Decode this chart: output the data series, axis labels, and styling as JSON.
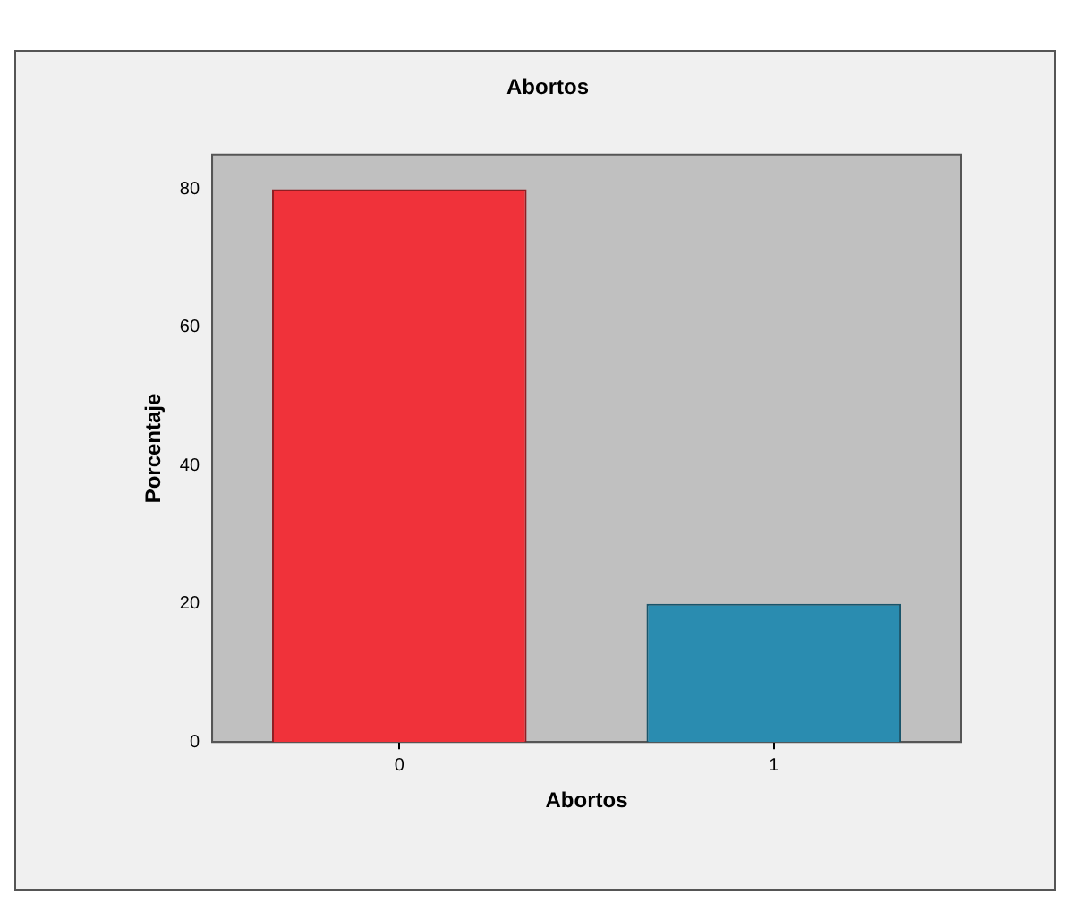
{
  "chart_data": {
    "type": "bar",
    "title": "Abortos",
    "xlabel": "Abortos",
    "ylabel": "Porcentaje",
    "categories": [
      "0",
      "1"
    ],
    "values": [
      80,
      20
    ],
    "colors": [
      "#f0323a",
      "#2a8cb0"
    ],
    "ylim": [
      0,
      85
    ],
    "yticks": [
      0,
      20,
      40,
      60,
      80
    ],
    "grid": false,
    "legend": false
  }
}
